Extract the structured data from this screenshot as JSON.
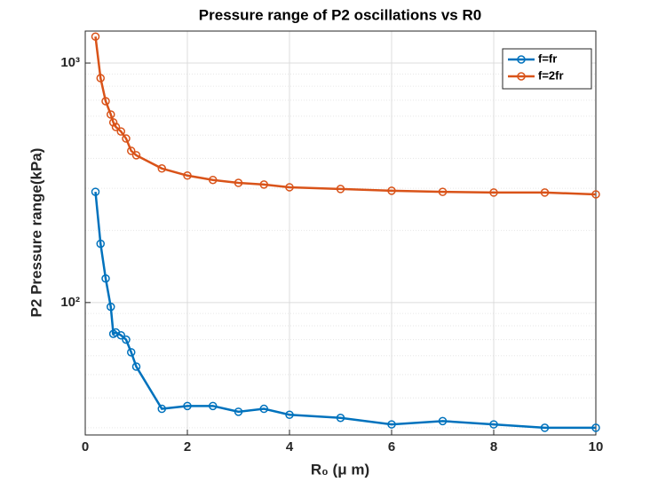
{
  "chart_data": {
    "type": "line",
    "title": "Pressure range of P2 oscillations vs R0",
    "x_label": "R₀ (μ m)",
    "y_label": "P2 Pressure range(kPa)",
    "x": [
      0.2,
      0.3,
      0.4,
      0.5,
      0.55,
      0.6,
      0.7,
      0.8,
      0.9,
      1,
      1.5,
      2,
      2.5,
      3,
      3.5,
      4,
      5,
      6,
      7,
      8,
      9,
      10
    ],
    "series": [
      {
        "name": "f=fr",
        "color": "#0072BD",
        "values": [
          290,
          176,
          126,
          96,
          74,
          75,
          73,
          70,
          62,
          54,
          36,
          37,
          37,
          35,
          36,
          34,
          33,
          31,
          32,
          31,
          30,
          30
        ]
      },
      {
        "name": "f=2fr",
        "color": "#D95319",
        "values": [
          1290,
          865,
          693,
          610,
          565,
          541,
          518,
          484,
          430,
          412,
          363,
          339,
          325,
          316,
          311,
          303,
          298,
          293,
          290,
          288,
          288,
          283
        ]
      }
    ],
    "xlim": [
      0,
      10
    ],
    "xticks": [
      0,
      2,
      4,
      6,
      8,
      10
    ],
    "ylim": [
      28,
      1360
    ],
    "yticks": [
      {
        "value": 100,
        "label": "10²"
      },
      {
        "value": 1000,
        "label": "10³"
      }
    ],
    "y_log": true,
    "grid": true,
    "legend": "northeast"
  }
}
